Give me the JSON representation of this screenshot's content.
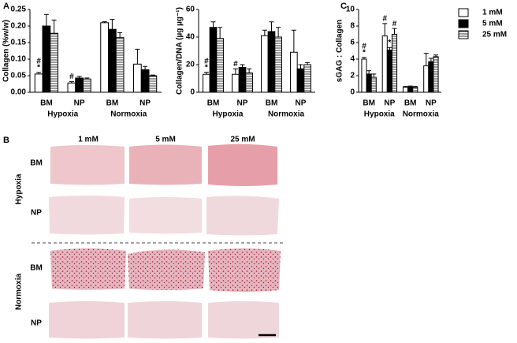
{
  "chart_data": [
    {
      "type": "bar",
      "panel": "A",
      "ylabel": "Collagen (%w/w)",
      "categories": [
        "BM",
        "NP",
        "BM",
        "NP"
      ],
      "groups": [
        "Hypoxia",
        "Normoxia"
      ],
      "ylim": [
        0,
        0.25
      ],
      "yticks": [
        {
          "value": 0,
          "label": "0.00"
        },
        {
          "value": 0.05,
          "label": "0.05"
        },
        {
          "value": 0.1,
          "label": "0.10"
        },
        {
          "value": 0.15,
          "label": "0.15"
        },
        {
          "value": 0.2,
          "label": "0.20"
        },
        {
          "value": 0.25,
          "label": "0.25"
        }
      ],
      "series": [
        {
          "color": "#ffffff",
          "values": [
            0.055,
            0.028,
            0.21,
            0.085
          ],
          "errors": [
            0.005,
            0.004,
            0.003,
            0.045
          ],
          "annotations": [
            [
              "#",
              "*"
            ],
            [
              "#"
            ],
            null,
            null
          ]
        },
        {
          "color": "#000000",
          "values": [
            0.2,
            0.043,
            0.19,
            0.068
          ],
          "errors": [
            0.035,
            0.005,
            0.03,
            0.01
          ],
          "annotations": [
            null,
            null,
            null,
            null
          ]
        },
        {
          "color": "#ffffff",
          "hatch": true,
          "values": [
            0.178,
            0.04,
            0.165,
            0.05
          ],
          "errors": [
            0.04,
            0.003,
            0.015,
            0.002
          ],
          "annotations": [
            null,
            null,
            null,
            null
          ]
        }
      ]
    },
    {
      "type": "bar",
      "ylabel": "Collagen/DNA (µg µg⁻¹)",
      "categories": [
        "BM",
        "NP",
        "BM",
        "NP"
      ],
      "groups": [
        "Hypoxia",
        "Normoxia"
      ],
      "ylim": [
        0,
        60
      ],
      "yticks": [
        0,
        20,
        40,
        60
      ],
      "series": [
        {
          "color": "#ffffff",
          "values": [
            13,
            13,
            41,
            29
          ],
          "errors": [
            1.5,
            4,
            4,
            16
          ],
          "annotations": [
            [
              "#",
              "*"
            ],
            [
              "#"
            ],
            null,
            null
          ]
        },
        {
          "color": "#000000",
          "values": [
            47,
            18,
            44,
            17
          ],
          "errors": [
            4,
            2,
            7,
            3
          ],
          "annotations": [
            null,
            null,
            null,
            null
          ]
        },
        {
          "color": "#ffffff",
          "hatch": true,
          "values": [
            39,
            14,
            40,
            20
          ],
          "errors": [
            8,
            3,
            7,
            1.5
          ],
          "annotations": [
            null,
            null,
            null,
            null
          ]
        }
      ]
    },
    {
      "type": "bar",
      "panel": "C",
      "ylabel": "sGAG : Collagen",
      "categories": [
        "BM",
        "NP",
        "BM",
        "NP"
      ],
      "groups": [
        "Hypoxia",
        "Normoxia"
      ],
      "ylim": [
        0,
        10
      ],
      "yticks": [
        0,
        2,
        4,
        6,
        8,
        10
      ],
      "series": [
        {
          "name": "1 mM",
          "color": "#ffffff",
          "values": [
            4.0,
            6.8,
            0.6,
            3.2
          ],
          "errors": [
            0.2,
            1.5,
            0.1,
            1.5
          ],
          "annotations": [
            [
              "#",
              "*"
            ],
            [
              "#"
            ],
            null,
            null
          ]
        },
        {
          "name": "5 mM",
          "color": "#000000",
          "values": [
            2.2,
            5.1,
            0.65,
            3.7
          ],
          "errors": [
            0.4,
            0.3,
            0.1,
            0.4
          ],
          "annotations": [
            null,
            [
              "*"
            ],
            null,
            null
          ]
        },
        {
          "name": "25 mM",
          "color": "#ffffff",
          "hatch": true,
          "values": [
            1.8,
            7.0,
            0.6,
            4.3
          ],
          "errors": [
            0.4,
            0.7,
            0.1,
            0.2
          ],
          "annotations": [
            null,
            [
              "#"
            ],
            null,
            null
          ]
        }
      ]
    }
  ],
  "panel_b": {
    "label": "B",
    "columns": [
      "1 mM",
      "5 mM",
      "25 mM"
    ],
    "conditions": [
      {
        "name": "Hypoxia",
        "rows": [
          "BM",
          "NP"
        ]
      },
      {
        "name": "Normoxia",
        "rows": [
          "BM",
          "NP"
        ]
      }
    ]
  }
}
